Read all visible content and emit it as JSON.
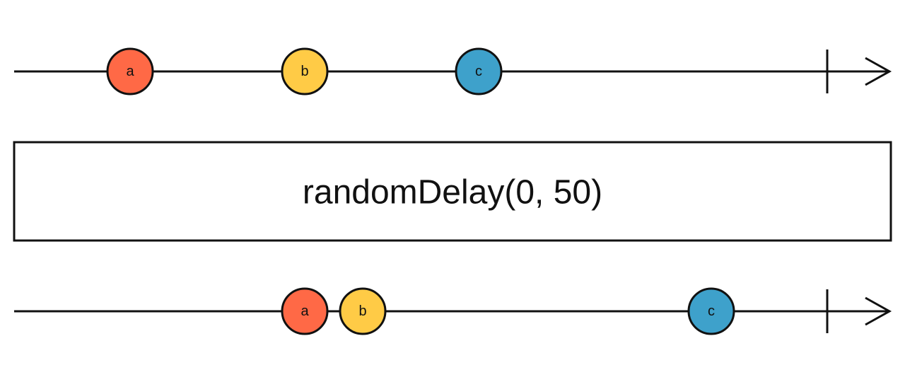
{
  "operator": {
    "label": "randomDelay(0, 50)"
  },
  "colors": {
    "red": "#FF6946",
    "yellow": "#FFCB46",
    "blue": "#3EA1CB",
    "stroke": "#111111"
  },
  "input": {
    "completed": true,
    "marbles": [
      {
        "label": "a",
        "color": "red"
      },
      {
        "label": "b",
        "color": "yellow"
      },
      {
        "label": "c",
        "color": "blue"
      }
    ]
  },
  "output": {
    "completed": true,
    "marbles": [
      {
        "label": "a",
        "color": "red"
      },
      {
        "label": "b",
        "color": "yellow"
      },
      {
        "label": "c",
        "color": "blue"
      }
    ]
  }
}
